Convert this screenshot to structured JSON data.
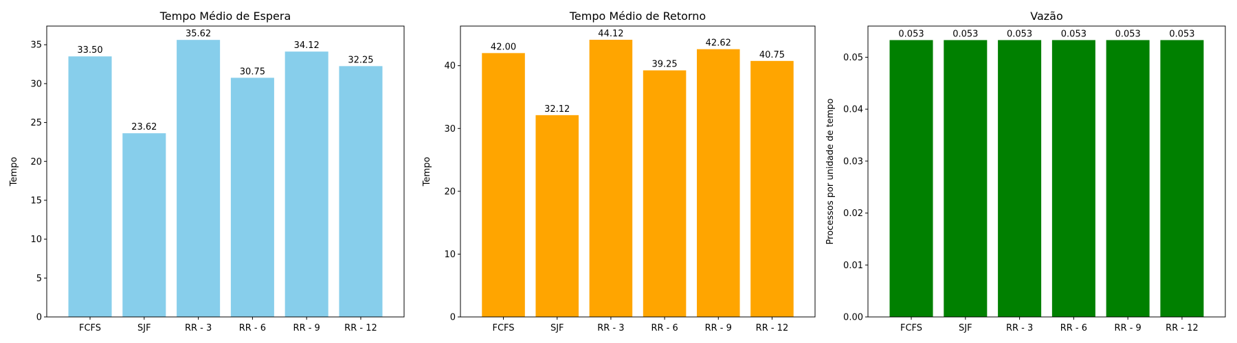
{
  "chart_data": [
    {
      "type": "bar",
      "title": "Tempo Médio de Espera",
      "xlabel": "",
      "ylabel": "Tempo",
      "categories": [
        "FCFS",
        "SJF",
        "RR - 3",
        "RR - 6",
        "RR - 9",
        "RR - 12"
      ],
      "values": [
        33.5,
        23.62,
        35.62,
        30.75,
        34.12,
        32.25
      ],
      "data_labels": [
        "33.50",
        "23.62",
        "35.62",
        "30.75",
        "34.12",
        "32.25"
      ],
      "ylim": [
        0,
        37.4
      ],
      "yticks": [
        0,
        5,
        10,
        15,
        20,
        25,
        30,
        35
      ],
      "ytick_labels": [
        "0",
        "5",
        "10",
        "15",
        "20",
        "25",
        "30",
        "35"
      ],
      "color": "#87CEEB",
      "grid": false,
      "legend": "none"
    },
    {
      "type": "bar",
      "title": "Tempo Médio de Retorno",
      "xlabel": "",
      "ylabel": "Tempo",
      "categories": [
        "FCFS",
        "SJF",
        "RR - 3",
        "RR - 6",
        "RR - 9",
        "RR - 12"
      ],
      "values": [
        42.0,
        32.12,
        44.12,
        39.25,
        42.62,
        40.75
      ],
      "data_labels": [
        "42.00",
        "32.12",
        "44.12",
        "39.25",
        "42.62",
        "40.75"
      ],
      "ylim": [
        0,
        46.3
      ],
      "yticks": [
        0,
        10,
        20,
        30,
        40
      ],
      "ytick_labels": [
        "0",
        "10",
        "20",
        "30",
        "40"
      ],
      "color": "#FFA500",
      "grid": false,
      "legend": "none"
    },
    {
      "type": "bar",
      "title": "Vazão",
      "xlabel": "",
      "ylabel": "Processos por unidade de tempo",
      "categories": [
        "FCFS",
        "SJF",
        "RR - 3",
        "RR - 6",
        "RR - 9",
        "RR - 12"
      ],
      "values": [
        0.0533,
        0.0533,
        0.0533,
        0.0533,
        0.0533,
        0.0533
      ],
      "data_labels": [
        "0.053",
        "0.053",
        "0.053",
        "0.053",
        "0.053",
        "0.053"
      ],
      "ylim": [
        0,
        0.056
      ],
      "yticks": [
        0,
        0.01,
        0.02,
        0.03,
        0.04,
        0.05
      ],
      "ytick_labels": [
        "0.00",
        "0.01",
        "0.02",
        "0.03",
        "0.04",
        "0.05"
      ],
      "color": "#008000",
      "grid": false,
      "legend": "none"
    }
  ]
}
